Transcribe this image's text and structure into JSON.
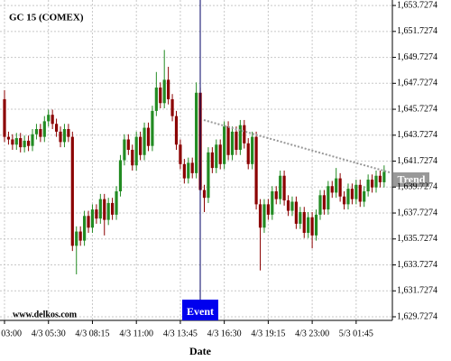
{
  "chart_data": {
    "type": "candlestick",
    "title": "GC 15 (COMEX)",
    "x_label": "Date",
    "watermark": "www.delkos.com",
    "event_label": "Event",
    "trend_label": "Trend",
    "up_color": "#228b22",
    "down_color": "#8b0000",
    "grid": true,
    "categories": [
      "4/3 03:00",
      null,
      null,
      null,
      null,
      null,
      null,
      null,
      null,
      null,
      null,
      "4/3 05:30",
      null,
      null,
      null,
      null,
      null,
      null,
      null,
      null,
      null,
      null,
      "4/3 08:15",
      null,
      null,
      null,
      null,
      null,
      null,
      null,
      null,
      null,
      null,
      "4/3 11:00",
      null,
      null,
      null,
      null,
      null,
      null,
      null,
      null,
      null,
      null,
      "4/3 13:45",
      null,
      null,
      null,
      null,
      null,
      null,
      null,
      null,
      null,
      null,
      "4/3 16:30",
      null,
      null,
      null,
      null,
      null,
      null,
      null,
      null,
      null,
      null,
      "4/3 19:15",
      null,
      null,
      null,
      null,
      null,
      null,
      null,
      null,
      null,
      null,
      "4/3 23:00",
      null,
      null,
      null,
      null,
      null,
      null,
      null,
      null,
      null,
      null,
      "5/3 01:45",
      null,
      null,
      null,
      null,
      null,
      null,
      null
    ],
    "open": [
      1646.5,
      1643.6,
      1643.4,
      1643.0,
      1643.5,
      1642.8,
      1643.3,
      1642.9,
      1643.8,
      1644.2,
      1643.6,
      1644.8,
      1645.3,
      1644.6,
      1644.0,
      1643.2,
      1644.2,
      1643.6,
      1635.2,
      1636.3,
      1635.6,
      1637.5,
      1636.6,
      1638.0,
      1637.3,
      1638.8,
      1637.2,
      1638.5,
      1637.6,
      1639.4,
      1641.8,
      1643.4,
      1642.6,
      1641.4,
      1643.6,
      1642.2,
      1644.3,
      1642.9,
      1645.6,
      1647.4,
      1646.2,
      1648.0,
      1646.5,
      1645.2,
      1643.0,
      1641.5,
      1640.4,
      1641.6,
      1640.8,
      1647.0,
      1639.5,
      1638.9,
      1642.4,
      1641.2,
      1643.0,
      1641.5,
      1644.4,
      1642.2,
      1644.0,
      1642.6,
      1644.5,
      1643.1,
      1641.5,
      1643.6,
      1638.4,
      1636.6,
      1638.4,
      1637.6,
      1639.4,
      1638.8,
      1640.6,
      1638.7,
      1637.9,
      1638.6,
      1636.9,
      1637.8,
      1636.2,
      1637.4,
      1636.0,
      1637.6,
      1639.1,
      1638.0,
      1639.8,
      1639.3,
      1640.4,
      1639.0,
      1638.4,
      1639.6,
      1638.8,
      1639.9,
      1638.6,
      1639.4,
      1640.3,
      1639.7,
      1640.6,
      1640.1
    ],
    "high": [
      1647.2,
      1644.0,
      1643.8,
      1643.9,
      1643.9,
      1643.7,
      1643.7,
      1644.2,
      1644.6,
      1644.6,
      1645.2,
      1645.7,
      1645.7,
      1645.0,
      1644.4,
      1644.6,
      1644.6,
      1644.0,
      1636.7,
      1636.7,
      1637.9,
      1637.9,
      1638.4,
      1638.4,
      1639.2,
      1639.2,
      1638.9,
      1638.9,
      1639.8,
      1642.2,
      1643.8,
      1643.8,
      1643.0,
      1644.0,
      1644.0,
      1644.7,
      1644.7,
      1646.0,
      1648.6,
      1647.8,
      1650.3,
      1649.0,
      1646.9,
      1645.6,
      1643.4,
      1641.9,
      1642.0,
      1642.0,
      1647.8,
      1647.4,
      1639.9,
      1642.8,
      1642.8,
      1643.4,
      1643.4,
      1644.8,
      1644.8,
      1644.4,
      1644.4,
      1644.9,
      1644.9,
      1643.5,
      1644.0,
      1644.0,
      1638.8,
      1638.8,
      1638.8,
      1639.8,
      1639.8,
      1641.0,
      1641.0,
      1639.1,
      1639.0,
      1639.0,
      1638.2,
      1638.2,
      1637.8,
      1637.8,
      1638.0,
      1639.5,
      1639.5,
      1640.2,
      1640.2,
      1641.2,
      1640.8,
      1639.4,
      1640.0,
      1640.0,
      1640.3,
      1640.3,
      1639.8,
      1640.7,
      1640.7,
      1641.0,
      1641.0,
      1641.4
    ],
    "low": [
      1643.2,
      1643.0,
      1642.6,
      1642.6,
      1642.4,
      1642.4,
      1642.5,
      1642.5,
      1643.4,
      1643.2,
      1643.2,
      1644.4,
      1644.2,
      1643.6,
      1642.8,
      1642.8,
      1643.2,
      1634.8,
      1633.0,
      1635.2,
      1635.2,
      1636.2,
      1636.2,
      1636.9,
      1636.9,
      1636.0,
      1636.8,
      1637.2,
      1637.2,
      1639.0,
      1641.4,
      1642.2,
      1641.0,
      1641.0,
      1641.8,
      1641.8,
      1642.5,
      1642.5,
      1645.2,
      1645.8,
      1645.8,
      1646.1,
      1644.8,
      1642.6,
      1641.1,
      1640.0,
      1640.0,
      1640.4,
      1640.4,
      1639.1,
      1637.8,
      1638.5,
      1640.8,
      1640.8,
      1641.1,
      1641.1,
      1641.8,
      1641.8,
      1642.2,
      1642.2,
      1642.7,
      1641.1,
      1641.1,
      1638.0,
      1633.3,
      1636.2,
      1637.2,
      1637.2,
      1638.4,
      1638.4,
      1638.3,
      1637.5,
      1637.5,
      1636.5,
      1636.5,
      1635.8,
      1635.8,
      1635.0,
      1635.6,
      1637.2,
      1637.6,
      1637.6,
      1638.9,
      1638.9,
      1638.6,
      1638.0,
      1638.0,
      1638.4,
      1638.4,
      1638.2,
      1638.2,
      1639.0,
      1639.3,
      1639.3,
      1639.7,
      1639.7
    ],
    "close": [
      1643.6,
      1643.4,
      1643.0,
      1643.5,
      1642.8,
      1643.3,
      1642.9,
      1643.8,
      1644.2,
      1643.6,
      1644.8,
      1645.3,
      1644.6,
      1644.0,
      1643.2,
      1644.2,
      1643.6,
      1635.2,
      1636.3,
      1635.6,
      1637.5,
      1636.6,
      1638.0,
      1637.3,
      1638.8,
      1637.2,
      1638.5,
      1637.6,
      1639.4,
      1641.8,
      1643.4,
      1642.6,
      1641.4,
      1643.6,
      1642.2,
      1644.3,
      1642.9,
      1645.6,
      1647.4,
      1646.2,
      1648.0,
      1646.5,
      1645.2,
      1643.0,
      1641.5,
      1640.4,
      1641.6,
      1640.8,
      1647.0,
      1639.5,
      1638.9,
      1642.4,
      1641.2,
      1643.0,
      1641.5,
      1644.4,
      1642.2,
      1644.0,
      1642.6,
      1644.5,
      1643.1,
      1641.5,
      1643.6,
      1638.4,
      1636.6,
      1638.4,
      1637.6,
      1639.4,
      1638.8,
      1640.6,
      1638.7,
      1637.9,
      1638.6,
      1636.9,
      1637.8,
      1636.2,
      1637.4,
      1636.0,
      1637.6,
      1639.1,
      1638.0,
      1639.8,
      1639.3,
      1640.4,
      1639.0,
      1638.4,
      1639.6,
      1638.8,
      1639.9,
      1638.6,
      1639.4,
      1640.3,
      1639.7,
      1640.6,
      1640.1,
      1640.9
    ],
    "ylim": [
      1629.45,
      1654.15
    ],
    "yticks": [
      {
        "value": 1629.7274,
        "label": "1,629.7274"
      },
      {
        "value": 1631.7274,
        "label": "1,631.7274"
      },
      {
        "value": 1633.7274,
        "label": "1,633.7274"
      },
      {
        "value": 1635.7274,
        "label": "1,635.7274"
      },
      {
        "value": 1637.7274,
        "label": "1,637.7274"
      },
      {
        "value": 1639.7274,
        "label": "1,639.7274"
      },
      {
        "value": 1641.7274,
        "label": "1,641.7274"
      },
      {
        "value": 1643.7274,
        "label": "1,643.7274"
      },
      {
        "value": 1645.7274,
        "label": "1,645.7274"
      },
      {
        "value": 1647.7274,
        "label": "1,647.7274"
      },
      {
        "value": 1649.7274,
        "label": "1,649.7274"
      },
      {
        "value": 1651.7274,
        "label": "1,651.7274"
      },
      {
        "value": 1653.7274,
        "label": "1,653.7274"
      }
    ]
  }
}
